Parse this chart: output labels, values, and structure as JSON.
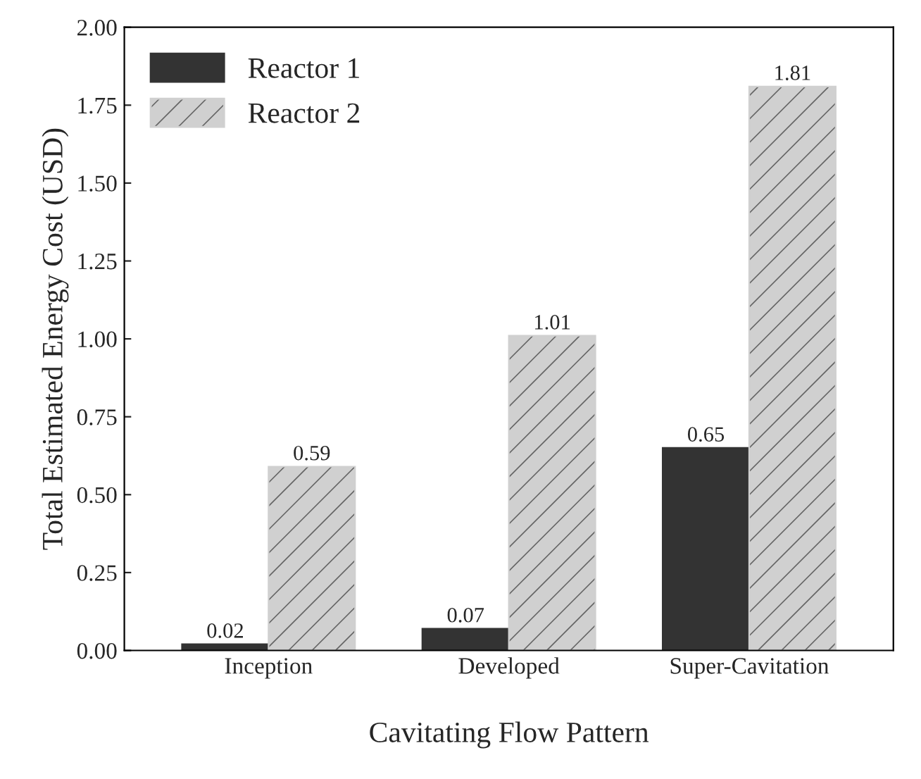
{
  "chart_data": {
    "type": "bar",
    "xlabel": "Cavitating Flow Pattern",
    "ylabel": "Total Estimated Energy Cost (USD)",
    "categories": [
      "Inception",
      "Developed",
      "Super-Cavitation"
    ],
    "series": [
      {
        "name": "Reactor 1",
        "color": "#333333",
        "values": [
          0.02,
          0.07,
          0.65
        ]
      },
      {
        "name": "Reactor 2",
        "color": "#d0d0d0",
        "values": [
          0.59,
          1.01,
          1.81
        ]
      }
    ],
    "ylim": [
      0,
      2
    ],
    "yticks": [
      {
        "value": 0,
        "label": "0.00"
      },
      {
        "value": 0.25,
        "label": "0.25"
      },
      {
        "value": 0.5,
        "label": "0.50"
      },
      {
        "value": 0.75,
        "label": "0.75"
      },
      {
        "value": 1,
        "label": "1.00"
      },
      {
        "value": 1.25,
        "label": "1.25"
      },
      {
        "value": 1.5,
        "label": "1.50"
      },
      {
        "value": 1.75,
        "label": "1.75"
      },
      {
        "value": 2,
        "label": "2.00"
      }
    ],
    "data_labels": true,
    "legend": "top left",
    "grid": false
  }
}
